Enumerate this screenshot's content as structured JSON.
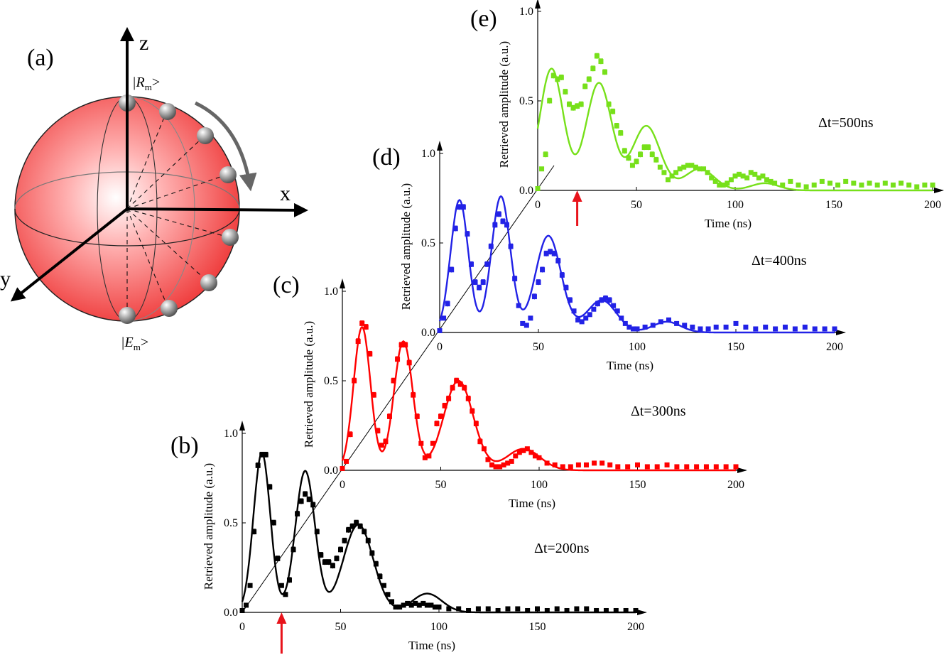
{
  "colors": {
    "axes": "#000000",
    "arrow": "#e8131b",
    "sphere": "#ef3b3b",
    "sphere_light": "#ffe9e9",
    "series_b": "#000000",
    "series_c": "#ff0000",
    "series_d": "#2222e6",
    "series_e": "#77e01a"
  },
  "sphere": {
    "panel_label": "(a)",
    "axis_z": "z",
    "axis_x": "x",
    "axis_y": "y",
    "state_top": "|R",
    "state_top_sub": "m",
    "state_top_end": ">",
    "state_bottom": "|E",
    "state_bottom_sub": "m",
    "state_bottom_end": ">"
  },
  "chart_data": [
    {
      "id": "b",
      "panel_label": "(b)",
      "type": "scatter",
      "xlabel": "Time (ns)",
      "ylabel": "Retrieved amplitude (a.u.)",
      "xlim": [
        0,
        200
      ],
      "ylim": [
        0,
        1.0
      ],
      "xticks": [
        "0",
        "50",
        "100",
        "150",
        "200"
      ],
      "yticks": [
        "0.0",
        "0.5",
        "1.0"
      ],
      "annotation": "Δt=200ns",
      "marker_arrow_time": 20,
      "fit": {
        "A": [
          0.89,
          0.79,
          0.49,
          0.105
        ],
        "c": [
          10,
          32,
          59,
          94
        ],
        "s": [
          4.3,
          5.0,
          7.6,
          7.5
        ]
      },
      "points": [
        [
          0,
          0.01
        ],
        [
          2,
          0.04
        ],
        [
          4,
          0.15
        ],
        [
          6,
          0.45
        ],
        [
          8,
          0.82
        ],
        [
          10,
          0.88
        ],
        [
          12,
          0.88
        ],
        [
          14,
          0.7
        ],
        [
          16,
          0.5
        ],
        [
          18,
          0.3
        ],
        [
          20,
          0.15
        ],
        [
          22,
          0.1
        ],
        [
          24,
          0.18
        ],
        [
          26,
          0.35
        ],
        [
          28,
          0.55
        ],
        [
          30,
          0.62
        ],
        [
          32,
          0.66
        ],
        [
          34,
          0.63
        ],
        [
          36,
          0.6
        ],
        [
          38,
          0.45
        ],
        [
          40,
          0.32
        ],
        [
          42,
          0.28
        ],
        [
          44,
          0.28
        ],
        [
          46,
          0.26
        ],
        [
          48,
          0.3
        ],
        [
          50,
          0.35
        ],
        [
          52,
          0.4
        ],
        [
          54,
          0.46
        ],
        [
          56,
          0.48
        ],
        [
          58,
          0.5
        ],
        [
          60,
          0.48
        ],
        [
          62,
          0.45
        ],
        [
          64,
          0.4
        ],
        [
          66,
          0.33
        ],
        [
          68,
          0.27
        ],
        [
          70,
          0.2
        ],
        [
          72,
          0.15
        ],
        [
          74,
          0.1
        ],
        [
          76,
          0.06
        ],
        [
          78,
          0.03
        ],
        [
          80,
          0.03
        ],
        [
          82,
          0.04
        ],
        [
          84,
          0.05
        ],
        [
          86,
          0.04
        ],
        [
          88,
          0.05
        ],
        [
          90,
          0.04
        ],
        [
          92,
          0.05
        ],
        [
          94,
          0.04
        ],
        [
          96,
          0.04
        ],
        [
          98,
          0.03
        ],
        [
          100,
          0.03
        ],
        [
          105,
          0.02
        ],
        [
          110,
          0.02
        ],
        [
          115,
          0.01
        ],
        [
          120,
          0.02
        ],
        [
          125,
          0.02
        ],
        [
          130,
          0.01
        ],
        [
          135,
          0.02
        ],
        [
          140,
          0.02
        ],
        [
          145,
          0.01
        ],
        [
          150,
          0.02
        ],
        [
          155,
          0.01
        ],
        [
          160,
          0.02
        ],
        [
          165,
          0.01
        ],
        [
          170,
          0.02
        ],
        [
          175,
          0.02
        ],
        [
          180,
          0.01
        ],
        [
          185,
          0.01
        ],
        [
          190,
          0.01
        ],
        [
          195,
          0.01
        ],
        [
          200,
          0.01
        ]
      ]
    },
    {
      "id": "c",
      "panel_label": "(c)",
      "type": "scatter",
      "xlabel": "Time (ns)",
      "ylabel": "Retrieved amplitude (a.u.)",
      "xlim": [
        0,
        200
      ],
      "ylim": [
        0,
        1.0
      ],
      "xticks": [
        "0",
        "50",
        "100",
        "150",
        "200"
      ],
      "yticks": [
        "0.0",
        "0.5",
        "1.0"
      ],
      "annotation": "Δt=300ns",
      "fit": {
        "A": [
          0.8,
          0.72,
          0.5,
          0.12
        ],
        "c": [
          10,
          31,
          59,
          92
        ],
        "s": [
          4.3,
          4.8,
          7.5,
          8.5
        ]
      },
      "points": [
        [
          0,
          0.01
        ],
        [
          2,
          0.05
        ],
        [
          4,
          0.2
        ],
        [
          6,
          0.5
        ],
        [
          8,
          0.72
        ],
        [
          10,
          0.82
        ],
        [
          12,
          0.8
        ],
        [
          14,
          0.65
        ],
        [
          16,
          0.42
        ],
        [
          18,
          0.22
        ],
        [
          20,
          0.14
        ],
        [
          22,
          0.16
        ],
        [
          24,
          0.3
        ],
        [
          26,
          0.5
        ],
        [
          28,
          0.62
        ],
        [
          30,
          0.7
        ],
        [
          32,
          0.7
        ],
        [
          34,
          0.6
        ],
        [
          36,
          0.42
        ],
        [
          38,
          0.3
        ],
        [
          40,
          0.15
        ],
        [
          42,
          0.07
        ],
        [
          44,
          0.08
        ],
        [
          46,
          0.15
        ],
        [
          48,
          0.26
        ],
        [
          50,
          0.3
        ],
        [
          52,
          0.36
        ],
        [
          54,
          0.4
        ],
        [
          56,
          0.46
        ],
        [
          58,
          0.5
        ],
        [
          60,
          0.48
        ],
        [
          62,
          0.46
        ],
        [
          64,
          0.4
        ],
        [
          66,
          0.33
        ],
        [
          68,
          0.26
        ],
        [
          70,
          0.16
        ],
        [
          72,
          0.12
        ],
        [
          74,
          0.06
        ],
        [
          76,
          0.03
        ],
        [
          78,
          0.02
        ],
        [
          80,
          0.02
        ],
        [
          82,
          0.03
        ],
        [
          84,
          0.04
        ],
        [
          86,
          0.05
        ],
        [
          88,
          0.08
        ],
        [
          90,
          0.1
        ],
        [
          92,
          0.11
        ],
        [
          94,
          0.12
        ],
        [
          96,
          0.1
        ],
        [
          98,
          0.08
        ],
        [
          100,
          0.07
        ],
        [
          104,
          0.04
        ],
        [
          108,
          0.03
        ],
        [
          112,
          0.02
        ],
        [
          116,
          0.02
        ],
        [
          120,
          0.03
        ],
        [
          124,
          0.03
        ],
        [
          128,
          0.04
        ],
        [
          132,
          0.04
        ],
        [
          136,
          0.03
        ],
        [
          140,
          0.02
        ],
        [
          145,
          0.02
        ],
        [
          150,
          0.03
        ],
        [
          155,
          0.02
        ],
        [
          160,
          0.02
        ],
        [
          165,
          0.03
        ],
        [
          170,
          0.02
        ],
        [
          175,
          0.02
        ],
        [
          180,
          0.02
        ],
        [
          185,
          0.02
        ],
        [
          190,
          0.02
        ],
        [
          195,
          0.02
        ],
        [
          200,
          0.02
        ]
      ]
    },
    {
      "id": "d",
      "panel_label": "(d)",
      "type": "scatter",
      "xlabel": "Time (ns)",
      "ylabel": "Retrieved amplitude (a.u.)",
      "xlim": [
        0,
        200
      ],
      "ylim": [
        0,
        1.0
      ],
      "xticks": [
        "0",
        "50",
        "100",
        "150",
        "200"
      ],
      "yticks": [
        "0.0",
        "0.5",
        "1.0"
      ],
      "annotation": "Δt=400ns",
      "fit": {
        "A": [
          0.74,
          0.76,
          0.54,
          0.18,
          0.06
        ],
        "c": [
          10,
          31,
          55,
          82,
          115
        ],
        "s": [
          4.5,
          4.8,
          6.5,
          7.5,
          7
        ]
      },
      "points": [
        [
          0,
          0.01
        ],
        [
          2,
          0.08
        ],
        [
          4,
          0.16
        ],
        [
          6,
          0.35
        ],
        [
          8,
          0.58
        ],
        [
          10,
          0.7
        ],
        [
          12,
          0.7
        ],
        [
          14,
          0.55
        ],
        [
          16,
          0.38
        ],
        [
          18,
          0.28
        ],
        [
          20,
          0.25
        ],
        [
          22,
          0.28
        ],
        [
          24,
          0.38
        ],
        [
          26,
          0.48
        ],
        [
          28,
          0.6
        ],
        [
          30,
          0.66
        ],
        [
          32,
          0.62
        ],
        [
          34,
          0.6
        ],
        [
          36,
          0.48
        ],
        [
          38,
          0.3
        ],
        [
          40,
          0.15
        ],
        [
          42,
          0.05
        ],
        [
          44,
          0.04
        ],
        [
          46,
          0.08
        ],
        [
          48,
          0.2
        ],
        [
          50,
          0.28
        ],
        [
          52,
          0.35
        ],
        [
          54,
          0.44
        ],
        [
          56,
          0.45
        ],
        [
          58,
          0.44
        ],
        [
          60,
          0.4
        ],
        [
          62,
          0.32
        ],
        [
          64,
          0.25
        ],
        [
          66,
          0.18
        ],
        [
          68,
          0.12
        ],
        [
          70,
          0.07
        ],
        [
          72,
          0.06
        ],
        [
          74,
          0.08
        ],
        [
          76,
          0.1
        ],
        [
          78,
          0.13
        ],
        [
          80,
          0.16
        ],
        [
          82,
          0.18
        ],
        [
          84,
          0.19
        ],
        [
          86,
          0.18
        ],
        [
          88,
          0.15
        ],
        [
          90,
          0.12
        ],
        [
          92,
          0.08
        ],
        [
          94,
          0.05
        ],
        [
          96,
          0.03
        ],
        [
          98,
          0.02
        ],
        [
          100,
          0.02
        ],
        [
          104,
          0.03
        ],
        [
          108,
          0.04
        ],
        [
          112,
          0.06
        ],
        [
          116,
          0.07
        ],
        [
          120,
          0.05
        ],
        [
          124,
          0.04
        ],
        [
          128,
          0.03
        ],
        [
          132,
          0.02
        ],
        [
          136,
          0.02
        ],
        [
          140,
          0.03
        ],
        [
          145,
          0.03
        ],
        [
          150,
          0.05
        ],
        [
          155,
          0.03
        ],
        [
          160,
          0.02
        ],
        [
          165,
          0.03
        ],
        [
          170,
          0.02
        ],
        [
          175,
          0.03
        ],
        [
          180,
          0.02
        ],
        [
          185,
          0.03
        ],
        [
          190,
          0.02
        ],
        [
          195,
          0.02
        ],
        [
          200,
          0.02
        ]
      ]
    },
    {
      "id": "e",
      "panel_label": "(e)",
      "type": "scatter",
      "xlabel": "Time (ns)",
      "ylabel": "Retrieved amplitude (a.u.)",
      "xlim": [
        0,
        200
      ],
      "ylim": [
        0,
        1.0
      ],
      "xticks": [
        "0",
        "50",
        "100",
        "150",
        "200"
      ],
      "yticks": [
        "0.0",
        "0.5",
        "1.0"
      ],
      "annotation": "Δt=500ns",
      "marker_arrow_time": 20,
      "fit": {
        "A": [
          0.68,
          0.6,
          0.36,
          0.12,
          0.04
        ],
        "c": [
          7,
          31,
          55,
          82,
          115
        ],
        "s": [
          6,
          6.5,
          7,
          7.5,
          7
        ]
      },
      "points": [
        [
          0,
          0.01
        ],
        [
          2,
          0.12
        ],
        [
          4,
          0.2
        ],
        [
          6,
          0.5
        ],
        [
          8,
          0.64
        ],
        [
          10,
          0.62
        ],
        [
          12,
          0.63
        ],
        [
          14,
          0.55
        ],
        [
          16,
          0.48
        ],
        [
          18,
          0.46
        ],
        [
          20,
          0.47
        ],
        [
          22,
          0.48
        ],
        [
          24,
          0.58
        ],
        [
          26,
          0.62
        ],
        [
          28,
          0.68
        ],
        [
          30,
          0.75
        ],
        [
          32,
          0.72
        ],
        [
          34,
          0.66
        ],
        [
          36,
          0.48
        ],
        [
          38,
          0.44
        ],
        [
          40,
          0.36
        ],
        [
          42,
          0.32
        ],
        [
          44,
          0.22
        ],
        [
          46,
          0.18
        ],
        [
          48,
          0.14
        ],
        [
          50,
          0.16
        ],
        [
          52,
          0.2
        ],
        [
          54,
          0.24
        ],
        [
          56,
          0.24
        ],
        [
          58,
          0.2
        ],
        [
          60,
          0.17
        ],
        [
          62,
          0.13
        ],
        [
          64,
          0.1
        ],
        [
          66,
          0.06
        ],
        [
          68,
          0.08
        ],
        [
          70,
          0.1
        ],
        [
          72,
          0.12
        ],
        [
          74,
          0.13
        ],
        [
          76,
          0.14
        ],
        [
          78,
          0.14
        ],
        [
          80,
          0.13
        ],
        [
          82,
          0.12
        ],
        [
          84,
          0.12
        ],
        [
          86,
          0.1
        ],
        [
          88,
          0.07
        ],
        [
          90,
          0.05
        ],
        [
          92,
          0.03
        ],
        [
          94,
          0.03
        ],
        [
          96,
          0.04
        ],
        [
          98,
          0.06
        ],
        [
          100,
          0.08
        ],
        [
          102,
          0.09
        ],
        [
          104,
          0.08
        ],
        [
          106,
          0.07
        ],
        [
          108,
          0.1
        ],
        [
          110,
          0.09
        ],
        [
          112,
          0.07
        ],
        [
          114,
          0.08
        ],
        [
          116,
          0.06
        ],
        [
          118,
          0.05
        ],
        [
          120,
          0.04
        ],
        [
          124,
          0.03
        ],
        [
          128,
          0.05
        ],
        [
          132,
          0.03
        ],
        [
          136,
          0.02
        ],
        [
          140,
          0.03
        ],
        [
          144,
          0.05
        ],
        [
          148,
          0.04
        ],
        [
          152,
          0.03
        ],
        [
          156,
          0.05
        ],
        [
          160,
          0.04
        ],
        [
          164,
          0.03
        ],
        [
          168,
          0.04
        ],
        [
          172,
          0.03
        ],
        [
          176,
          0.04
        ],
        [
          180,
          0.03
        ],
        [
          184,
          0.04
        ],
        [
          188,
          0.03
        ],
        [
          192,
          0.02
        ],
        [
          196,
          0.03
        ],
        [
          200,
          0.03
        ]
      ]
    }
  ]
}
